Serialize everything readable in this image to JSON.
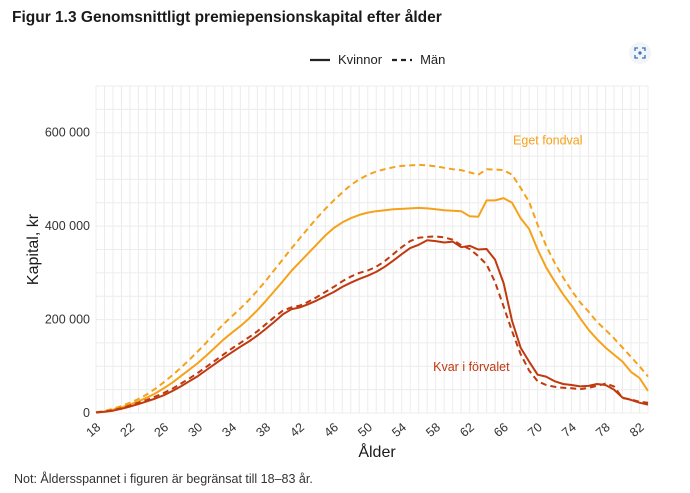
{
  "figure": {
    "title": "Figur 1.3 Genomsnittligt premiepensionskapital efter ålder",
    "footnote": "Not: Åldersspannet i figuren är begränsat till 18–83 år.",
    "expand_icon": "expand-icon"
  },
  "colors": {
    "orange": "#f5a21b",
    "red": "#c0390f",
    "grid": "#ececec"
  },
  "chart_data": {
    "type": "line",
    "title": "Figur 1.3 Genomsnittligt premiepensionskapital efter ålder",
    "xlabel": "Ålder",
    "ylabel": "Kapital, kr",
    "xlim": [
      18,
      83
    ],
    "ylim": [
      0,
      700000
    ],
    "x_ticks": [
      18,
      22,
      26,
      30,
      34,
      38,
      42,
      46,
      50,
      54,
      58,
      62,
      66,
      70,
      74,
      78,
      82
    ],
    "x_tick_labels": [
      "18",
      "22",
      "26",
      "30",
      "34",
      "38",
      "42",
      "46",
      "50",
      "54",
      "58",
      "62",
      "66",
      "70",
      "74",
      "78",
      "82"
    ],
    "y_ticks": [
      0,
      200000,
      400000,
      600000
    ],
    "y_tick_labels": [
      "0",
      "200 000",
      "400 000",
      "600 000"
    ],
    "grid": true,
    "legend": {
      "position": "top",
      "entries": [
        {
          "label": "Kvinnor",
          "style": "solid"
        },
        {
          "label": "Män",
          "style": "dashed"
        }
      ]
    },
    "annotations": [
      {
        "text": "Eget fondval",
        "color": "orange"
      },
      {
        "text": "Kvar i förvalet",
        "color": "red"
      }
    ],
    "x": [
      18,
      19,
      20,
      21,
      22,
      23,
      24,
      25,
      26,
      27,
      28,
      29,
      30,
      31,
      32,
      33,
      34,
      35,
      36,
      37,
      38,
      39,
      40,
      41,
      42,
      43,
      44,
      45,
      46,
      47,
      48,
      49,
      50,
      51,
      52,
      53,
      54,
      55,
      56,
      57,
      58,
      59,
      60,
      61,
      62,
      63,
      64,
      65,
      66,
      67,
      68,
      69,
      70,
      71,
      72,
      73,
      74,
      75,
      76,
      77,
      78,
      79,
      80,
      81,
      82,
      83
    ],
    "series": [
      {
        "group": "Eget fondval",
        "sex": "Kvinnor",
        "color": "orange",
        "style": "solid",
        "values": [
          1000,
          3000,
          7000,
          12000,
          18000,
          25000,
          33000,
          42000,
          53000,
          65000,
          79000,
          93000,
          107000,
          123000,
          140000,
          157000,
          172000,
          186000,
          202000,
          220000,
          240000,
          261000,
          282000,
          304000,
          323000,
          342000,
          361000,
          380000,
          396000,
          408000,
          417000,
          424000,
          429000,
          432000,
          434000,
          436000,
          437000,
          438000,
          439000,
          438000,
          436000,
          434000,
          433000,
          432000,
          421000,
          420000,
          455000,
          455000,
          460000,
          450000,
          417000,
          394000,
          350000,
          312000,
          282000,
          254000,
          230000,
          203000,
          178000,
          158000,
          140000,
          125000,
          110000,
          88000,
          75000,
          47000
        ]
      },
      {
        "group": "Eget fondval",
        "sex": "Män",
        "color": "orange",
        "style": "dashed",
        "values": [
          1500,
          4500,
          9000,
          15000,
          22000,
          30000,
          40000,
          52000,
          66000,
          81000,
          97000,
          114000,
          132000,
          151000,
          171000,
          190000,
          207000,
          224000,
          242000,
          262000,
          283000,
          306000,
          329000,
          352000,
          374000,
          396000,
          417000,
          437000,
          455000,
          472000,
          488000,
          500000,
          510000,
          517000,
          522000,
          526000,
          529000,
          530000,
          531000,
          530000,
          528000,
          525000,
          522000,
          520000,
          515000,
          510000,
          522000,
          521000,
          520000,
          510000,
          482000,
          452000,
          403000,
          358000,
          322000,
          290000,
          262000,
          237000,
          217000,
          195000,
          178000,
          160000,
          140000,
          120000,
          100000,
          78000
        ]
      },
      {
        "group": "Kvar i förvalet",
        "sex": "Kvinnor",
        "color": "red",
        "style": "solid",
        "values": [
          1000,
          2500,
          5000,
          9000,
          14000,
          19000,
          25000,
          31000,
          38000,
          47000,
          57000,
          68000,
          79000,
          92000,
          105000,
          118000,
          130000,
          142000,
          153000,
          166000,
          180000,
          195000,
          211000,
          222000,
          226000,
          233000,
          241000,
          250000,
          259000,
          270000,
          279000,
          287000,
          294000,
          302000,
          313000,
          326000,
          340000,
          353000,
          360000,
          370000,
          368000,
          365000,
          367000,
          355000,
          358000,
          350000,
          351000,
          328000,
          278000,
          197000,
          140000,
          110000,
          82000,
          78000,
          68000,
          62000,
          60000,
          57000,
          58000,
          62000,
          60000,
          50000,
          33000,
          28000,
          22000,
          18000
        ]
      },
      {
        "group": "Kvar i förvalet",
        "sex": "Män",
        "color": "red",
        "style": "dashed",
        "values": [
          1200,
          3000,
          6000,
          10500,
          16000,
          22000,
          28000,
          35000,
          43000,
          52000,
          63000,
          74000,
          86000,
          99000,
          112000,
          125000,
          138000,
          150000,
          162000,
          175000,
          190000,
          205000,
          219000,
          226000,
          230000,
          238000,
          248000,
          259000,
          270000,
          282000,
          292000,
          300000,
          305000,
          313000,
          325000,
          340000,
          355000,
          368000,
          375000,
          377000,
          378000,
          376000,
          371000,
          359000,
          351000,
          336000,
          318000,
          280000,
          228000,
          175000,
          126000,
          91000,
          68000,
          60000,
          56000,
          54000,
          53000,
          51000,
          54000,
          58000,
          63000,
          57000,
          32000,
          29000,
          24000,
          22000
        ]
      }
    ]
  }
}
